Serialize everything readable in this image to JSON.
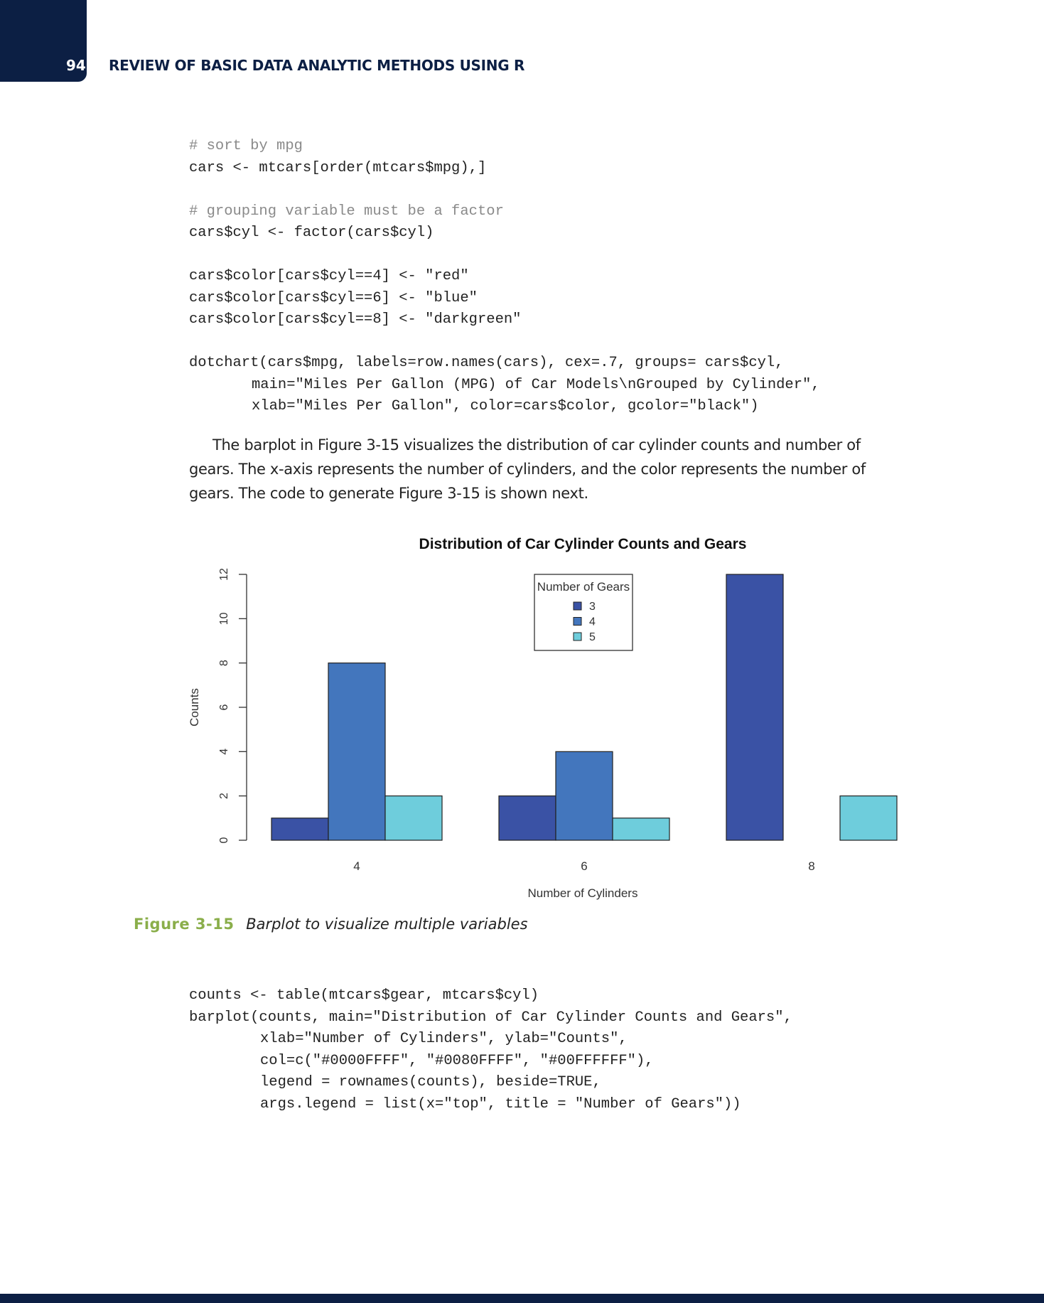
{
  "header": {
    "page_number": "94",
    "running_head": "REVIEW OF BASIC DATA ANALYTIC METHODS USING R"
  },
  "code_block_1": [
    {
      "text": "# sort by mpg",
      "kind": "comment",
      "indent": 0
    },
    {
      "text": "cars <- mtcars[order(mtcars$mpg),]",
      "kind": "code",
      "indent": 0
    },
    {
      "text": "",
      "kind": "blank",
      "indent": 0
    },
    {
      "text": "# grouping variable must be a factor",
      "kind": "comment",
      "indent": 0
    },
    {
      "text": "cars$cyl <- factor(cars$cyl)",
      "kind": "code",
      "indent": 0
    },
    {
      "text": "",
      "kind": "blank",
      "indent": 0
    },
    {
      "text": "cars$color[cars$cyl==4] <- \"red\"",
      "kind": "code",
      "indent": 0
    },
    {
      "text": "cars$color[cars$cyl==6] <- \"blue\"",
      "kind": "code",
      "indent": 0
    },
    {
      "text": "cars$color[cars$cyl==8] <- \"darkgreen\"",
      "kind": "code",
      "indent": 0
    },
    {
      "text": "",
      "kind": "blank",
      "indent": 0
    },
    {
      "text": "dotchart(cars$mpg, labels=row.names(cars), cex=.7, groups= cars$cyl,",
      "kind": "code",
      "indent": 0
    },
    {
      "text": "main=\"Miles Per Gallon (MPG) of Car Models\\nGrouped by Cylinder\",",
      "kind": "code",
      "indent": 1
    },
    {
      "text": "xlab=\"Miles Per Gallon\", color=cars$color, gcolor=\"black\")",
      "kind": "code",
      "indent": 1
    }
  ],
  "paragraph": "The barplot in Figure 3-15 visualizes the distribution of car cylinder counts and number of gears. The x-axis represents the number of cylinders, and the color represents the number of gears. The code to generate Figure 3-15 is shown next.",
  "chart_data": {
    "type": "bar",
    "title": "Distribution of Car Cylinder Counts and Gears",
    "xlabel": "Number of Cylinders",
    "ylabel": "Counts",
    "categories": [
      "4",
      "6",
      "8"
    ],
    "series": [
      {
        "name": "3",
        "values": [
          1,
          2,
          12
        ],
        "color": "#3a52a5"
      },
      {
        "name": "4",
        "values": [
          8,
          4,
          0
        ],
        "color": "#4376bd"
      },
      {
        "name": "5",
        "values": [
          2,
          1,
          2
        ],
        "color": "#6ecddc"
      }
    ],
    "ylim": [
      0,
      12
    ],
    "yticks": [
      "0",
      "2",
      "4",
      "6",
      "8",
      "10",
      "12"
    ],
    "legend": {
      "title": "Number of Gears",
      "placement": "top"
    },
    "grid": false
  },
  "figure_caption": {
    "label": "Figure 3-15",
    "text": "Barplot to visualize multiple variables"
  },
  "code_block_2": [
    {
      "text": "counts <- table(mtcars$gear, mtcars$cyl)",
      "kind": "code",
      "indent": 0
    },
    {
      "text": "barplot(counts, main=\"Distribution of Car Cylinder Counts and Gears\",",
      "kind": "code",
      "indent": 0
    },
    {
      "text": "xlab=\"Number of Cylinders\", ylab=\"Counts\",",
      "kind": "code",
      "indent": 2
    },
    {
      "text": "col=c(\"#0000FFFF\", \"#0080FFFF\", \"#00FFFFFF\"),",
      "kind": "code",
      "indent": 2
    },
    {
      "text": "legend = rownames(counts), beside=TRUE,",
      "kind": "code",
      "indent": 2
    },
    {
      "text": "args.legend = list(x=\"top\", title = \"Number of Gears\"))",
      "kind": "code",
      "indent": 2
    }
  ],
  "colors": {
    "header_navy": "#0c1f44",
    "figure_label_green": "#8aae4a",
    "comment_gray": "#8a8a8a"
  }
}
